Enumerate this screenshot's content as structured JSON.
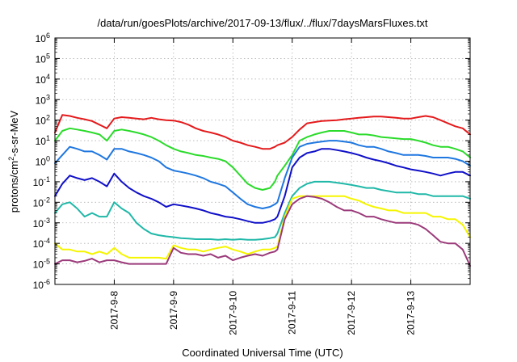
{
  "chart_data": {
    "type": "line",
    "title": "/data/run/goesPlots/archive/2017-09-13/flux/../flux/7daysMarsFluxes.txt",
    "xlabel": "Coordinated Universal Time (UTC)",
    "ylabel": {
      "prefix": "protons/cm",
      "sup": "2",
      "suffix": "-s-sr-MeV"
    },
    "yscale": "log",
    "ylim": [
      1e-06,
      1000000.0
    ],
    "xlim": [
      "2017-09-07T00:00",
      "2017-09-14T00:00"
    ],
    "grid": true,
    "y_ticks": [
      {
        "base": "10",
        "exp": "-6",
        "value": 1e-06
      },
      {
        "base": "10",
        "exp": "-5",
        "value": 1e-05
      },
      {
        "base": "10",
        "exp": "-4",
        "value": 0.0001
      },
      {
        "base": "10",
        "exp": "-3",
        "value": 0.001
      },
      {
        "base": "10",
        "exp": "-2",
        "value": 0.01
      },
      {
        "base": "10",
        "exp": "-1",
        "value": 0.1
      },
      {
        "base": "10",
        "exp": "0",
        "value": 1
      },
      {
        "base": "10",
        "exp": "1",
        "value": 10
      },
      {
        "base": "10",
        "exp": "2",
        "value": 100
      },
      {
        "base": "10",
        "exp": "3",
        "value": 1000
      },
      {
        "base": "10",
        "exp": "4",
        "value": 10000
      },
      {
        "base": "10",
        "exp": "5",
        "value": 100000
      },
      {
        "base": "10",
        "exp": "6",
        "value": 1000000
      }
    ],
    "x_ticks": [
      {
        "label": "2017-9-8",
        "value": "2017-09-08T00:00"
      },
      {
        "label": "2017-9-9",
        "value": "2017-09-09T00:00"
      },
      {
        "label": "2017-9-10",
        "value": "2017-09-10T00:00"
      },
      {
        "label": "2017-9-11",
        "value": "2017-09-11T00:00"
      },
      {
        "label": "2017-9-12",
        "value": "2017-09-12T00:00"
      },
      {
        "label": "2017-9-13",
        "value": "2017-09-13T00:00"
      }
    ],
    "x": [
      "2017-09-07T00:00",
      "2017-09-07T03:00",
      "2017-09-07T06:00",
      "2017-09-07T09:00",
      "2017-09-07T12:00",
      "2017-09-07T15:00",
      "2017-09-07T18:00",
      "2017-09-07T21:00",
      "2017-09-08T00:00",
      "2017-09-08T03:00",
      "2017-09-08T06:00",
      "2017-09-08T09:00",
      "2017-09-08T12:00",
      "2017-09-08T15:00",
      "2017-09-08T18:00",
      "2017-09-08T21:00",
      "2017-09-09T00:00",
      "2017-09-09T03:00",
      "2017-09-09T06:00",
      "2017-09-09T09:00",
      "2017-09-09T12:00",
      "2017-09-09T15:00",
      "2017-09-09T18:00",
      "2017-09-09T21:00",
      "2017-09-10T00:00",
      "2017-09-10T03:00",
      "2017-09-10T06:00",
      "2017-09-10T09:00",
      "2017-09-10T12:00",
      "2017-09-10T15:00",
      "2017-09-10T17:00",
      "2017-09-10T18:00",
      "2017-09-10T21:00",
      "2017-09-11T00:00",
      "2017-09-11T03:00",
      "2017-09-11T06:00",
      "2017-09-11T09:00",
      "2017-09-11T12:00",
      "2017-09-11T15:00",
      "2017-09-11T18:00",
      "2017-09-11T21:00",
      "2017-09-12T00:00",
      "2017-09-12T03:00",
      "2017-09-12T06:00",
      "2017-09-12T09:00",
      "2017-09-12T12:00",
      "2017-09-12T15:00",
      "2017-09-12T18:00",
      "2017-09-12T21:00",
      "2017-09-13T00:00",
      "2017-09-13T03:00",
      "2017-09-13T06:00",
      "2017-09-13T09:00",
      "2017-09-13T12:00",
      "2017-09-13T15:00",
      "2017-09-13T18:00",
      "2017-09-13T21:00",
      "2017-09-14T00:00"
    ],
    "series": [
      {
        "color": "#e41a1c",
        "values": [
          25,
          180,
          160,
          130,
          110,
          90,
          60,
          40,
          120,
          140,
          130,
          120,
          110,
          130,
          110,
          100,
          95,
          80,
          60,
          40,
          30,
          25,
          20,
          15,
          10,
          8,
          6,
          5,
          4,
          4,
          5,
          6,
          8,
          15,
          35,
          70,
          80,
          90,
          95,
          100,
          110,
          120,
          130,
          140,
          150,
          150,
          140,
          130,
          120,
          120,
          140,
          160,
          140,
          100,
          70,
          50,
          40,
          20
        ]
      },
      {
        "color": "#2bdb2b",
        "values": [
          10,
          30,
          40,
          35,
          30,
          25,
          20,
          10,
          30,
          35,
          30,
          25,
          20,
          15,
          10,
          6,
          4,
          3,
          2.5,
          2,
          1.8,
          1.5,
          1.3,
          1.0,
          0.5,
          0.2,
          0.08,
          0.05,
          0.04,
          0.05,
          0.1,
          0.2,
          0.6,
          2,
          10,
          15,
          20,
          25,
          30,
          30,
          30,
          25,
          20,
          20,
          18,
          15,
          14,
          13,
          12,
          12,
          10,
          8,
          6,
          5,
          5,
          4,
          3,
          1.5
        ]
      },
      {
        "color": "#1f77e0",
        "values": [
          0.8,
          2,
          5,
          4,
          3,
          3,
          2,
          1.2,
          4,
          4,
          3,
          2.5,
          2,
          1.5,
          1,
          0.5,
          0.35,
          0.3,
          0.25,
          0.2,
          0.15,
          0.1,
          0.08,
          0.06,
          0.03,
          0.015,
          0.008,
          0.006,
          0.005,
          0.006,
          0.008,
          0.01,
          0.15,
          1.5,
          5,
          7,
          8,
          9,
          10,
          10,
          9,
          8,
          6,
          5,
          5,
          4,
          3,
          2.5,
          2,
          2,
          2,
          1.8,
          1.5,
          1.5,
          1.5,
          1.3,
          1,
          0.6
        ]
      },
      {
        "color": "#1010c8",
        "values": [
          0.02,
          0.08,
          0.2,
          0.15,
          0.12,
          0.15,
          0.1,
          0.06,
          0.25,
          0.1,
          0.05,
          0.03,
          0.02,
          0.015,
          0.01,
          0.006,
          0.008,
          0.007,
          0.006,
          0.005,
          0.004,
          0.003,
          0.0025,
          0.002,
          0.0018,
          0.0015,
          0.0012,
          0.001,
          0.001,
          0.0012,
          0.0015,
          0.002,
          0.02,
          0.5,
          1.5,
          2.5,
          3,
          4,
          4,
          3.5,
          3,
          2.5,
          2,
          1.5,
          1.2,
          1,
          0.8,
          0.6,
          0.5,
          0.4,
          0.35,
          0.3,
          0.25,
          0.2,
          0.25,
          0.3,
          0.3,
          0.2
        ]
      },
      {
        "color": "#20b8a8",
        "values": [
          0.003,
          0.008,
          0.01,
          0.005,
          0.002,
          0.003,
          0.002,
          0.002,
          0.01,
          0.005,
          0.003,
          0.001,
          0.0005,
          0.0003,
          0.00025,
          0.00022,
          0.0002,
          0.00018,
          0.00017,
          0.00016,
          0.00016,
          0.00016,
          0.00015,
          0.00016,
          0.00015,
          0.00016,
          0.00015,
          0.00015,
          0.00016,
          0.00018,
          0.0002,
          0.0003,
          0.003,
          0.02,
          0.05,
          0.08,
          0.1,
          0.1,
          0.1,
          0.09,
          0.08,
          0.07,
          0.06,
          0.05,
          0.05,
          0.04,
          0.035,
          0.03,
          0.03,
          0.03,
          0.025,
          0.025,
          0.02,
          0.02,
          0.02,
          0.02,
          0.02,
          0.015
        ]
      },
      {
        "color": "#f5f500",
        "values": [
          0.0001,
          5e-05,
          5e-05,
          4e-05,
          4e-05,
          3e-05,
          4e-05,
          3e-05,
          6e-05,
          3e-05,
          2e-05,
          2e-05,
          2e-05,
          2e-05,
          2e-05,
          1.8e-05,
          8e-05,
          6e-05,
          5e-05,
          5e-05,
          4e-05,
          5e-05,
          6e-05,
          7e-05,
          5e-05,
          4e-05,
          3e-05,
          4e-05,
          5e-05,
          5e-05,
          6e-05,
          7e-05,
          0.002,
          0.015,
          0.02,
          0.02,
          0.02,
          0.02,
          0.02,
          0.02,
          0.02,
          0.015,
          0.012,
          0.008,
          0.006,
          0.005,
          0.004,
          0.004,
          0.003,
          0.003,
          0.003,
          0.003,
          0.002,
          0.002,
          0.0015,
          0.0015,
          0.0008,
          0.0002
        ]
      },
      {
        "color": "#9b3a7a",
        "values": [
          1e-05,
          1.5e-05,
          1.5e-05,
          1.2e-05,
          1.4e-05,
          1.8e-05,
          1.2e-05,
          1.5e-05,
          1.5e-05,
          1.2e-05,
          1e-05,
          1e-05,
          1e-05,
          1e-05,
          1e-05,
          1e-05,
          6e-05,
          3.5e-05,
          3e-05,
          3e-05,
          2.5e-05,
          3e-05,
          2e-05,
          2.5e-05,
          1.5e-05,
          2e-05,
          2.5e-05,
          3e-05,
          2.5e-05,
          3.5e-05,
          4e-05,
          5e-05,
          0.0015,
          0.008,
          0.015,
          0.02,
          0.018,
          0.015,
          0.01,
          0.006,
          0.004,
          0.004,
          0.003,
          0.002,
          0.002,
          0.0015,
          0.0012,
          0.001,
          0.001,
          0.001,
          0.0008,
          0.0005,
          0.00025,
          0.00012,
          0.0001,
          0.0001,
          5e-05,
          8e-06
        ]
      }
    ]
  }
}
